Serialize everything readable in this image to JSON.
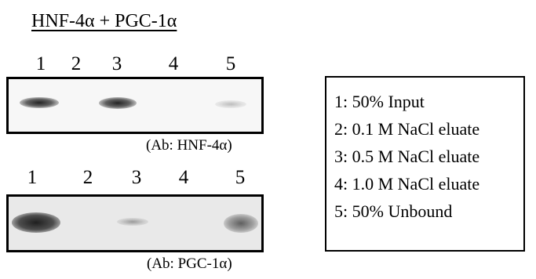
{
  "title": "HNF-4α + PGC-1α",
  "blot_top": {
    "lanes": [
      "1",
      "2",
      "3",
      "4",
      "5"
    ],
    "antibody": "(Ab: HNF-4α)"
  },
  "blot_bottom": {
    "lanes": [
      "1",
      "2",
      "3",
      "4",
      "5"
    ],
    "antibody": "(Ab: PGC-1α)"
  },
  "legend": [
    "1: 50% Input",
    "2: 0.1 M NaCl eluate",
    "3: 0.5 M NaCl eluate",
    "4: 1.0 M NaCl eluate",
    "5: 50% Unbound"
  ]
}
